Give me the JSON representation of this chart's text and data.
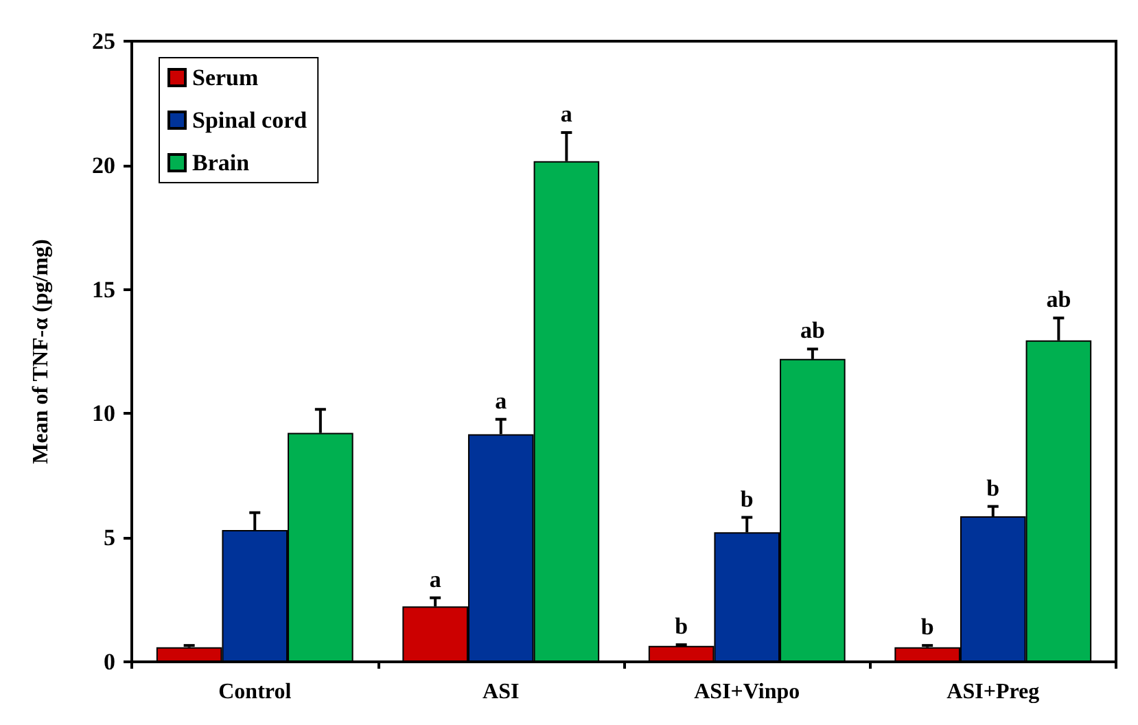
{
  "chart_data": {
    "type": "bar",
    "ylabel": "Mean of TNF-α (pg/mg)",
    "categories": [
      "Control",
      "ASI",
      "ASI+Vinpo",
      "ASI+Preg"
    ],
    "series": [
      {
        "name": "Serum",
        "color": "#cc0000",
        "values": [
          0.59,
          2.23,
          0.64,
          0.59
        ],
        "errors": [
          0.07,
          0.35,
          0.05,
          0.07
        ],
        "value_labels": [
          null,
          "a",
          "b",
          "b"
        ]
      },
      {
        "name": "Spinal cord",
        "color": "#003399",
        "values": [
          5.31,
          9.17,
          5.22,
          5.86
        ],
        "errors": [
          0.7,
          0.6,
          0.6,
          0.4
        ],
        "value_labels": [
          null,
          "a",
          "b",
          "b"
        ]
      },
      {
        "name": "Brain",
        "color": "#00b050",
        "values": [
          9.22,
          20.17,
          12.2,
          12.95
        ],
        "errors": [
          0.95,
          1.15,
          0.4,
          0.9
        ],
        "value_labels": [
          null,
          "a",
          "ab",
          "ab"
        ]
      }
    ],
    "ylim": [
      0,
      25
    ],
    "yticks": [
      0,
      5,
      10,
      15,
      20,
      25
    ],
    "grid": false,
    "legend": "top left"
  }
}
